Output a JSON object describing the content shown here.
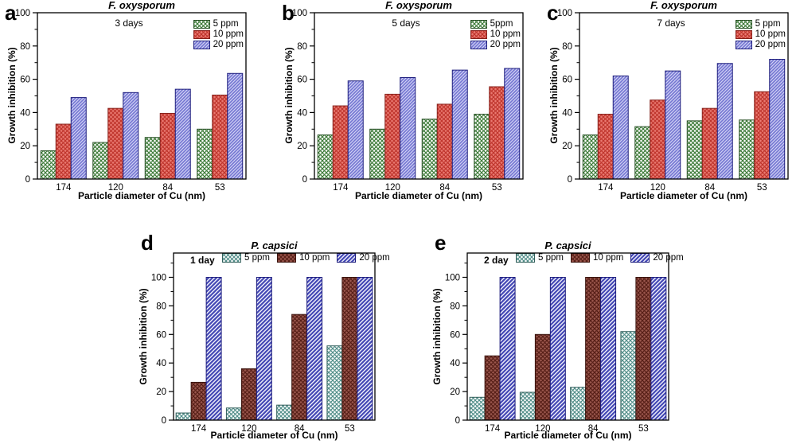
{
  "figure": {
    "xlabel": "Particle diameter of Cu (nm)",
    "ylabel": "Growth inhibition (%)"
  },
  "styles": {
    "green-cross": {
      "fill": "#ffffff",
      "hatch": "#3e7c39",
      "border": "#2c5429",
      "pattern": "cross"
    },
    "red-cross": {
      "fill": "#ea7a72",
      "hatch": "#bf352c",
      "border": "#86201a",
      "pattern": "cross"
    },
    "blue-diag": {
      "fill": "#7476d2",
      "hatch": "#d2d3f5",
      "border": "#1d1d7c",
      "pattern": "diag-thin"
    },
    "teal-cross": {
      "fill": "#ffffff",
      "hatch": "#538f8a",
      "border": "#33605c",
      "pattern": "cross"
    },
    "maroon-cross": {
      "fill": "#9a574d",
      "hatch": "#571f17",
      "border": "#3a140e",
      "pattern": "cross"
    },
    "blue-stripe": {
      "fill": "#ecedf9",
      "hatch": "#4246b4",
      "border": "#1d1d7c",
      "pattern": "diag-thick"
    }
  },
  "chart_data": [
    {
      "type": "bar",
      "panel": "a",
      "layout": "fox",
      "title": "F. oxysporum",
      "annotation": "3 days",
      "xlabel": "Particle diameter of Cu (nm)",
      "ylabel": "Growth inhibition (%)",
      "ylim": [
        0,
        100
      ],
      "yticks": [
        0,
        20,
        40,
        60,
        80,
        100
      ],
      "minor_step": 10,
      "legend_position": "top-right-vertical",
      "grid": false,
      "categories": [
        "174",
        "120",
        "84",
        "53"
      ],
      "series": [
        {
          "name": "5 ppm",
          "style": "green-cross",
          "values": [
            17,
            22,
            25,
            30
          ]
        },
        {
          "name": "10 ppm",
          "style": "red-cross",
          "values": [
            33,
            42.5,
            39.5,
            50.5
          ]
        },
        {
          "name": "20 ppm",
          "style": "blue-diag",
          "values": [
            49,
            52,
            54,
            63.5
          ]
        }
      ]
    },
    {
      "type": "bar",
      "panel": "b",
      "layout": "fox",
      "title": "F. oxysporum",
      "annotation": "5 days",
      "xlabel": "Particle diameter of Cu (nm)",
      "ylabel": "Growth inhibition (%)",
      "ylim": [
        0,
        100
      ],
      "yticks": [
        0,
        20,
        40,
        60,
        80,
        100
      ],
      "minor_step": 10,
      "legend_position": "top-right-vertical",
      "grid": false,
      "categories": [
        "174",
        "120",
        "84",
        "53"
      ],
      "series": [
        {
          "name": "5ppm",
          "style": "green-cross",
          "values": [
            26.5,
            30,
            36,
            39
          ]
        },
        {
          "name": "10 ppm",
          "style": "red-cross",
          "values": [
            44,
            51,
            45,
            55.5
          ]
        },
        {
          "name": "20 ppm",
          "style": "blue-diag",
          "values": [
            59,
            61,
            65.5,
            66.5
          ]
        }
      ]
    },
    {
      "type": "bar",
      "panel": "c",
      "layout": "fox",
      "title": "F. oxysporum",
      "annotation": "7 days",
      "xlabel": "Particle diameter of Cu (nm)",
      "ylabel": "Growth inhibition (%)",
      "ylim": [
        0,
        100
      ],
      "yticks": [
        0,
        20,
        40,
        60,
        80,
        100
      ],
      "minor_step": 10,
      "legend_position": "top-right-vertical",
      "grid": false,
      "categories": [
        "174",
        "120",
        "84",
        "53"
      ],
      "series": [
        {
          "name": "5 ppm",
          "style": "green-cross",
          "values": [
            26.5,
            31.5,
            35,
            35.5
          ]
        },
        {
          "name": "10 ppm",
          "style": "red-cross",
          "values": [
            39,
            47.5,
            42.5,
            52.5
          ]
        },
        {
          "name": "20 ppm",
          "style": "blue-diag",
          "values": [
            62,
            65,
            69.5,
            72
          ]
        }
      ]
    },
    {
      "type": "bar",
      "panel": "d",
      "layout": "cap",
      "title": "P. capsici",
      "annotation": "1 day",
      "xlabel": "Particle diameter of Cu (nm)",
      "ylabel": "Growth inhibition (%)",
      "ylim": [
        0,
        117
      ],
      "yticks": [
        0,
        20,
        40,
        60,
        80,
        100
      ],
      "minor_step": 10,
      "legend_position": "top-horizontal",
      "grid": false,
      "categories": [
        "174",
        "120",
        "84",
        "53"
      ],
      "series": [
        {
          "name": "5 ppm",
          "style": "teal-cross",
          "values": [
            5,
            8.5,
            10.5,
            52
          ]
        },
        {
          "name": "10 ppm",
          "style": "maroon-cross",
          "values": [
            26.5,
            36,
            74,
            100
          ]
        },
        {
          "name": "20 ppm",
          "style": "blue-stripe",
          "values": [
            100,
            100,
            100,
            100
          ]
        }
      ]
    },
    {
      "type": "bar",
      "panel": "e",
      "layout": "cap",
      "title": "P. capsici",
      "annotation": "2 day",
      "xlabel": "Particle diameter of Cu (nm)",
      "ylabel": "Growth inhibition (%)",
      "ylim": [
        0,
        117
      ],
      "yticks": [
        0,
        20,
        40,
        60,
        80,
        100
      ],
      "minor_step": 10,
      "legend_position": "top-horizontal",
      "grid": false,
      "categories": [
        "174",
        "120",
        "84",
        "53"
      ],
      "series": [
        {
          "name": "5 ppm",
          "style": "teal-cross",
          "values": [
            16,
            19.5,
            23,
            62
          ]
        },
        {
          "name": "10 ppm",
          "style": "maroon-cross",
          "values": [
            45,
            60,
            100,
            100
          ]
        },
        {
          "name": "20 ppm",
          "style": "blue-stripe",
          "values": [
            100,
            100,
            100,
            100
          ]
        }
      ]
    }
  ]
}
